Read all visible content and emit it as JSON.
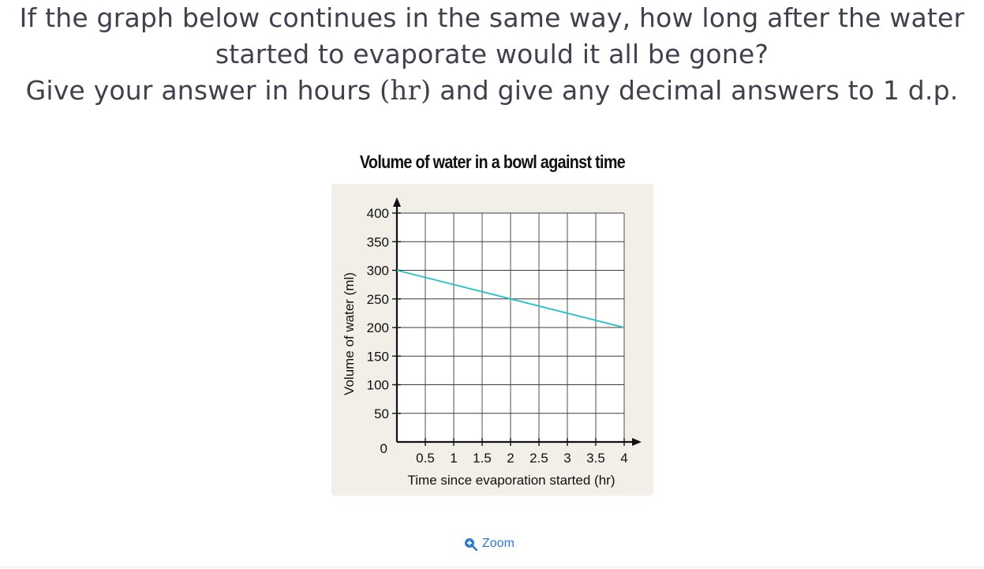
{
  "question": {
    "line1": "If the graph below continues in the same way, how long after the water",
    "line2": "started to evaporate would it all be gone?",
    "line3_pre": "Give your answer in hours ",
    "line3_unit": "(hr)",
    "line3_post": " and give any decimal answers to 1 d.p."
  },
  "zoom": {
    "label": "Zoom",
    "icon": "zoom-in-icon",
    "color": "#2f79d6"
  },
  "chart_data": {
    "type": "line",
    "title": "Volume of water in a bowl against time",
    "xlabel": "Time since evaporation started (hr)",
    "ylabel": "Volume of water (ml)",
    "xlim": [
      0,
      4
    ],
    "ylim": [
      0,
      400
    ],
    "x_ticks": [
      0.5,
      1,
      1.5,
      2,
      2.5,
      3,
      3.5,
      4
    ],
    "x_tick_labels": [
      "0.5",
      "1",
      "1.5",
      "2",
      "2.5",
      "3",
      "3.5",
      "4"
    ],
    "y_ticks": [
      50,
      100,
      150,
      200,
      250,
      300,
      350,
      400
    ],
    "y_tick_labels": [
      "50",
      "100",
      "150",
      "200",
      "250",
      "300",
      "350",
      "400"
    ],
    "origin_label": "0",
    "grid": true,
    "series": [
      {
        "x": [
          0,
          4
        ],
        "y": [
          300,
          200
        ],
        "color": "#1fc2c2"
      }
    ],
    "background": "#f1efe8"
  }
}
